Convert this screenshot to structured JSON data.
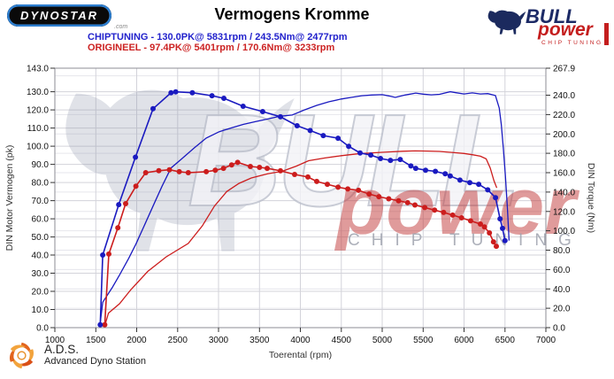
{
  "header": {
    "dynostar_text": "DYNOSTAR",
    "dynostar_suffix": ".com",
    "title": "Vermogens Kromme",
    "bull_logo": {
      "bull": "BULL",
      "power": "power",
      "chip": "CHIP TUNING"
    }
  },
  "legend": {
    "chiptuning_label": "CHIPTUNING - 130.0PK@ 5831rpm / 243.5Nm@ 2477rpm",
    "origineel_label": "ORIGINEEL - 97.4PK@ 5401rpm / 170.6Nm@ 3233rpm",
    "chiptuning_color": "#2222cc",
    "origineel_color": "#cc2222"
  },
  "footer": {
    "ads_abbr": "A.D.S.",
    "ads_full": "Advanced Dyno Station"
  },
  "chart_data": {
    "type": "line",
    "title": "Vermogens Kromme",
    "x_axis": {
      "label": "Toerental (rpm)",
      "min": 1000,
      "max": 7000,
      "ticks": [
        1000,
        1500,
        2000,
        2500,
        3000,
        3500,
        4000,
        4500,
        5000,
        5500,
        6000,
        6500,
        7000
      ],
      "grid": [
        1500,
        2000,
        2500,
        3000,
        3500,
        4000,
        4500,
        5000,
        5500,
        6000,
        6500
      ]
    },
    "left_axis": {
      "label": "DIN Motor Vermogen (pk)",
      "min": 0,
      "max": 143,
      "ticks": [
        0,
        10,
        20,
        30,
        40,
        50,
        60,
        70,
        80,
        90,
        100,
        110,
        120,
        130,
        143
      ],
      "grid": [
        10,
        20,
        30,
        40,
        50,
        60,
        70,
        80,
        90,
        100,
        110,
        120,
        130
      ]
    },
    "right_axis": {
      "label": "DIN Torque (Nm)",
      "min": 0,
      "max": 267.9,
      "ticks": [
        0,
        20,
        40,
        60,
        80,
        100,
        120,
        140,
        160,
        180,
        200,
        220,
        240,
        267.9
      ],
      "grid": [
        20,
        40,
        60,
        80,
        100,
        120,
        140,
        160,
        180,
        200,
        220,
        240,
        260
      ]
    },
    "watermark": {
      "bull_text": "BULL",
      "power_text": "power",
      "chip_text": "CHIP TUNING"
    },
    "peaks": {
      "chiptuning": {
        "power_pk": 130.0,
        "power_rpm": 5831,
        "torque_nm": 243.5,
        "torque_rpm": 2477
      },
      "origineel": {
        "power_pk": 97.4,
        "power_rpm": 5401,
        "torque_nm": 170.6,
        "torque_rpm": 3233
      }
    },
    "series": [
      {
        "name": "ORIGINEEL power",
        "slug": "origineel-power",
        "axis": "left",
        "unit": "pk",
        "color": "#cc1d1d",
        "markers": false,
        "points": [
          [
            1610,
            1
          ],
          [
            1655,
            8
          ],
          [
            1790,
            13.2
          ],
          [
            1930,
            21
          ],
          [
            2135,
            31
          ],
          [
            2360,
            39
          ],
          [
            2630,
            46.4
          ],
          [
            2800,
            56
          ],
          [
            2950,
            67
          ],
          [
            3100,
            75
          ],
          [
            3250,
            79.5
          ],
          [
            3400,
            82.5
          ],
          [
            3600,
            84.8
          ],
          [
            3780,
            86.2
          ],
          [
            3950,
            89
          ],
          [
            4100,
            92
          ],
          [
            4300,
            93.5
          ],
          [
            4500,
            94.8
          ],
          [
            4700,
            95.8
          ],
          [
            4900,
            96.4
          ],
          [
            5100,
            96.9
          ],
          [
            5250,
            97.2
          ],
          [
            5401,
            97.4
          ],
          [
            5550,
            97.3
          ],
          [
            5700,
            97.1
          ],
          [
            5850,
            96.6
          ],
          [
            6000,
            96
          ],
          [
            6100,
            95.3
          ],
          [
            6200,
            94.5
          ],
          [
            6270,
            93
          ],
          [
            6320,
            88
          ],
          [
            6365,
            81
          ],
          [
            6400,
            77
          ]
        ]
      },
      {
        "name": "CHIPTUNING power",
        "slug": "chiptuning-power",
        "axis": "left",
        "unit": "pk",
        "color": "#1a1ac0",
        "markers": false,
        "points": [
          [
            1550,
            1
          ],
          [
            1585,
            14
          ],
          [
            1700,
            22
          ],
          [
            1790,
            29
          ],
          [
            1900,
            38
          ],
          [
            1990,
            46
          ],
          [
            2100,
            57
          ],
          [
            2200,
            67
          ],
          [
            2310,
            78
          ],
          [
            2420,
            88
          ],
          [
            2550,
            93
          ],
          [
            2700,
            99
          ],
          [
            2850,
            104.5
          ],
          [
            3010,
            108
          ],
          [
            3150,
            110
          ],
          [
            3300,
            112
          ],
          [
            3450,
            113.5
          ],
          [
            3600,
            115
          ],
          [
            3750,
            116.5
          ],
          [
            3900,
            117.2
          ],
          [
            4050,
            120
          ],
          [
            4200,
            122.5
          ],
          [
            4350,
            124.5
          ],
          [
            4500,
            126
          ],
          [
            4620,
            126.9
          ],
          [
            4750,
            127.8
          ],
          [
            4870,
            128.2
          ],
          [
            5000,
            128.4
          ],
          [
            5080,
            127.7
          ],
          [
            5160,
            126.9
          ],
          [
            5280,
            128.2
          ],
          [
            5410,
            129.3
          ],
          [
            5500,
            128.7
          ],
          [
            5600,
            128.3
          ],
          [
            5700,
            128.6
          ],
          [
            5831,
            130
          ],
          [
            5900,
            129.5
          ],
          [
            6000,
            128.8
          ],
          [
            6100,
            129.4
          ],
          [
            6200,
            128.8
          ],
          [
            6290,
            129
          ],
          [
            6384,
            127.9
          ],
          [
            6430,
            121
          ],
          [
            6455,
            112
          ],
          [
            6480,
            99
          ],
          [
            6505,
            84
          ],
          [
            6530,
            66
          ],
          [
            6550,
            48
          ]
        ]
      },
      {
        "name": "ORIGINEEL torque",
        "slug": "origineel-torque",
        "axis": "right",
        "unit": "Nm",
        "color": "#cc1d1d",
        "markers": true,
        "points": [
          [
            1610,
            3
          ],
          [
            1660,
            76
          ],
          [
            1770,
            103
          ],
          [
            1865,
            128
          ],
          [
            1990,
            146
          ],
          [
            2110,
            160
          ],
          [
            2270,
            162
          ],
          [
            2400,
            163
          ],
          [
            2520,
            161
          ],
          [
            2630,
            160
          ],
          [
            2850,
            161
          ],
          [
            2960,
            162.5
          ],
          [
            3060,
            164.5
          ],
          [
            3160,
            168
          ],
          [
            3233,
            170.6
          ],
          [
            3389,
            166.4
          ],
          [
            3500,
            165.5
          ],
          [
            3595,
            164.5
          ],
          [
            3757,
            161.9
          ],
          [
            3930,
            158.2
          ],
          [
            4092,
            155.5
          ],
          [
            4200,
            151
          ],
          [
            4330,
            148
          ],
          [
            4460,
            145
          ],
          [
            4580,
            143.2
          ],
          [
            4710,
            141.8
          ],
          [
            4840,
            138
          ],
          [
            4960,
            135.2
          ],
          [
            5080,
            133
          ],
          [
            5200,
            131
          ],
          [
            5310,
            129
          ],
          [
            5400,
            126.6
          ],
          [
            5520,
            124
          ],
          [
            5640,
            121.3
          ],
          [
            5750,
            119
          ],
          [
            5860,
            116.2
          ],
          [
            5970,
            113.4
          ],
          [
            6080,
            110.3
          ],
          [
            6200,
            107
          ],
          [
            6250,
            104
          ],
          [
            6310,
            97.8
          ],
          [
            6360,
            88.6
          ],
          [
            6395,
            84
          ]
        ]
      },
      {
        "name": "CHIPTUNING torque",
        "slug": "chiptuning-torque",
        "axis": "right",
        "unit": "Nm",
        "color": "#1a1ac0",
        "markers": true,
        "points": [
          [
            1555,
            3
          ],
          [
            1585,
            75
          ],
          [
            1780,
            127
          ],
          [
            1985,
            176
          ],
          [
            2200,
            226
          ],
          [
            2420,
            242.5
          ],
          [
            2477,
            243.5
          ],
          [
            2680,
            242.6
          ],
          [
            2920,
            239.5
          ],
          [
            3065,
            236.8
          ],
          [
            3300,
            228.6
          ],
          [
            3540,
            223.1
          ],
          [
            3757,
            217.7
          ],
          [
            3960,
            208.5
          ],
          [
            4120,
            203.5
          ],
          [
            4280,
            198.3
          ],
          [
            4460,
            195.6
          ],
          [
            4590,
            187.3
          ],
          [
            4730,
            180.4
          ],
          [
            4860,
            178.2
          ],
          [
            4980,
            174.6
          ],
          [
            5100,
            172.7
          ],
          [
            5220,
            173.6
          ],
          [
            5350,
            167
          ],
          [
            5410,
            164.5
          ],
          [
            5530,
            162.6
          ],
          [
            5650,
            161.4
          ],
          [
            5770,
            158.8
          ],
          [
            5831,
            156.6
          ],
          [
            5950,
            152.3
          ],
          [
            6070,
            149.8
          ],
          [
            6180,
            148
          ],
          [
            6290,
            142.3
          ],
          [
            6385,
            134.2
          ],
          [
            6440,
            112.4
          ],
          [
            6470,
            102.5
          ],
          [
            6500,
            89.8
          ]
        ]
      }
    ]
  }
}
